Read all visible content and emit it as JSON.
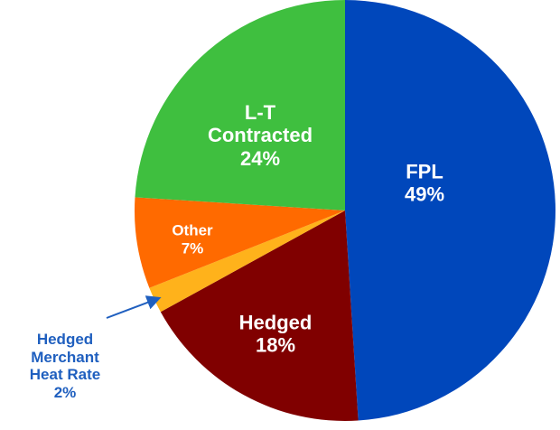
{
  "chart_data": {
    "type": "pie",
    "categories": [
      "FPL",
      "Hedged",
      "Hedged Merchant Heat Rate",
      "Other",
      "L-T Contracted"
    ],
    "values": [
      49,
      18,
      2,
      7,
      24
    ],
    "value_labels": [
      "49%",
      "18%",
      "2%",
      "7%",
      "24%"
    ],
    "colors": [
      "#0047bb",
      "#800000",
      "#ffb21b",
      "#ff6a00",
      "#3fbf3f"
    ],
    "label_colors": [
      "#ffffff",
      "#ffffff",
      "#1f5fbf",
      "#ffffff",
      "#ffffff"
    ]
  }
}
